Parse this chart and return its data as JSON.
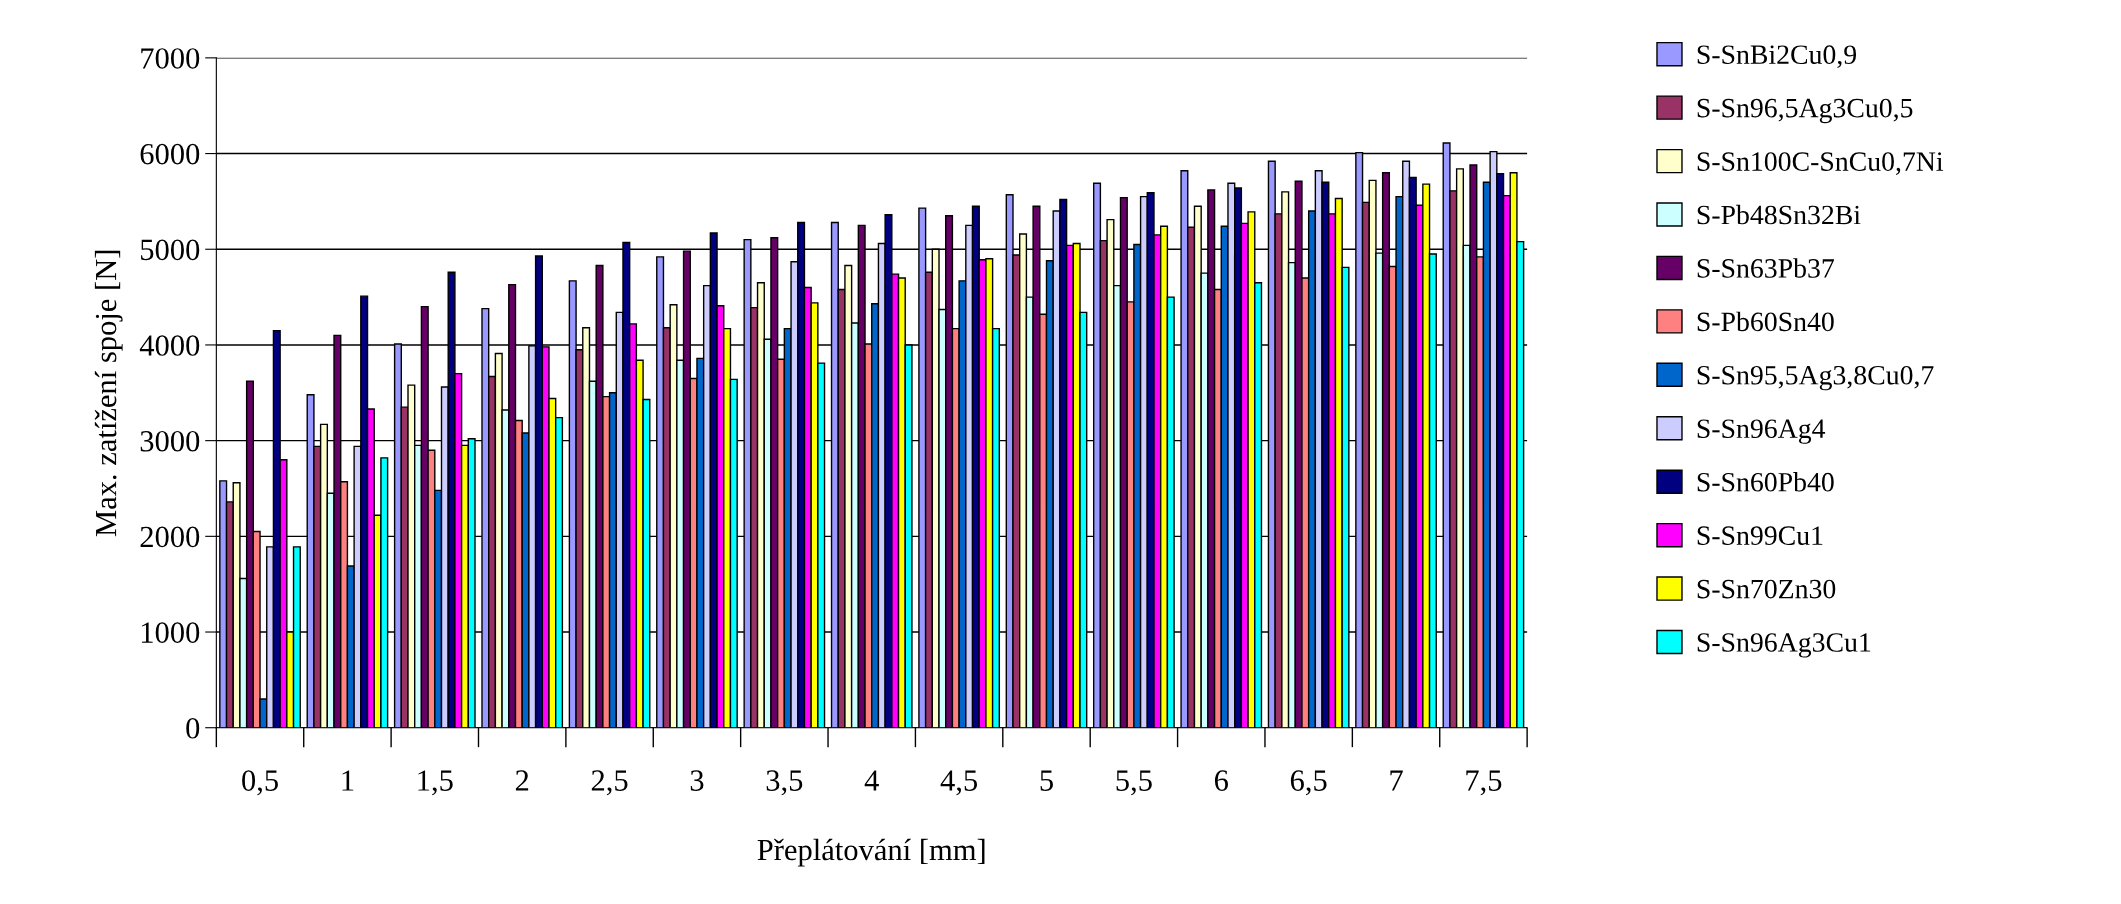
{
  "chart_data": {
    "type": "bar",
    "xlabel": "Přeplátování [mm]",
    "ylabel": "Max. zatížení spoje [N]",
    "categories": [
      "0,5",
      "1",
      "1,5",
      "2",
      "2,5",
      "3",
      "3,5",
      "4",
      "4,5",
      "5",
      "5,5",
      "6",
      "6,5",
      "7",
      "7,5"
    ],
    "ylim": [
      0,
      7000
    ],
    "yticks": [
      0,
      1000,
      2000,
      3000,
      4000,
      5000,
      6000,
      7000
    ],
    "grid": "y",
    "legend": "right",
    "series": [
      {
        "name": "S-SnBi2Cu0,9",
        "color": "#9999ff",
        "values": [
          2580,
          3480,
          4010,
          4380,
          4670,
          4920,
          5100,
          5280,
          5430,
          5570,
          5690,
          5820,
          5920,
          6010,
          6110
        ]
      },
      {
        "name": "S-Sn96,5Ag3Cu0,5",
        "color": "#993366",
        "values": [
          2360,
          2940,
          3350,
          3670,
          3950,
          4180,
          4390,
          4580,
          4760,
          4940,
          5090,
          5230,
          5370,
          5490,
          5610
        ]
      },
      {
        "name": "S-Sn100C-SnCu0,7Ni",
        "color": "#ffffcc",
        "values": [
          2560,
          3170,
          3580,
          3910,
          4180,
          4420,
          4650,
          4830,
          5000,
          5160,
          5310,
          5450,
          5600,
          5720,
          5840
        ]
      },
      {
        "name": "S-Pb48Sn32Bi",
        "color": "#ccffff",
        "values": [
          1560,
          2450,
          2950,
          3320,
          3620,
          3840,
          4060,
          4230,
          4370,
          4500,
          4620,
          4750,
          4860,
          4960,
          5040
        ]
      },
      {
        "name": "S-Sn63Pb37",
        "color": "#660066",
        "values": [
          3620,
          4100,
          4400,
          4630,
          4830,
          4980,
          5120,
          5250,
          5350,
          5450,
          5540,
          5620,
          5710,
          5800,
          5880
        ]
      },
      {
        "name": "S-Pb60Sn40",
        "color": "#ff8080",
        "values": [
          2050,
          2570,
          2900,
          3210,
          3460,
          3650,
          3850,
          4010,
          4170,
          4320,
          4450,
          4580,
          4700,
          4820,
          4920
        ]
      },
      {
        "name": "S-Sn95,5Ag3,8Cu0,7",
        "color": "#0066cc",
        "values": [
          300,
          1690,
          2480,
          3080,
          3500,
          3860,
          4170,
          4430,
          4670,
          4880,
          5050,
          5240,
          5400,
          5550,
          5700
        ]
      },
      {
        "name": "S-Sn96Ag4",
        "color": "#ccccff",
        "values": [
          1890,
          2940,
          3560,
          3990,
          4340,
          4620,
          4870,
          5060,
          5250,
          5400,
          5550,
          5690,
          5820,
          5920,
          6020
        ]
      },
      {
        "name": "S-Sn60Pb40",
        "color": "#000080",
        "values": [
          4150,
          4510,
          4760,
          4930,
          5070,
          5170,
          5280,
          5360,
          5450,
          5520,
          5590,
          5640,
          5700,
          5750,
          5790
        ]
      },
      {
        "name": "S-Sn99Cu1",
        "color": "#ff00ff",
        "values": [
          2800,
          3330,
          3700,
          3980,
          4220,
          4410,
          4600,
          4740,
          4890,
          5040,
          5150,
          5270,
          5370,
          5460,
          5560
        ]
      },
      {
        "name": "S-Sn70Zn30",
        "color": "#ffff00",
        "values": [
          1000,
          2220,
          2950,
          3440,
          3840,
          4170,
          4440,
          4700,
          4900,
          5060,
          5240,
          5390,
          5530,
          5680,
          5800
        ]
      },
      {
        "name": "S-Sn96Ag3Cu1",
        "color": "#00ffff",
        "values": [
          1890,
          2820,
          3020,
          3240,
          3430,
          3640,
          3810,
          4000,
          4170,
          4340,
          4500,
          4650,
          4810,
          4950,
          5080
        ]
      }
    ]
  }
}
